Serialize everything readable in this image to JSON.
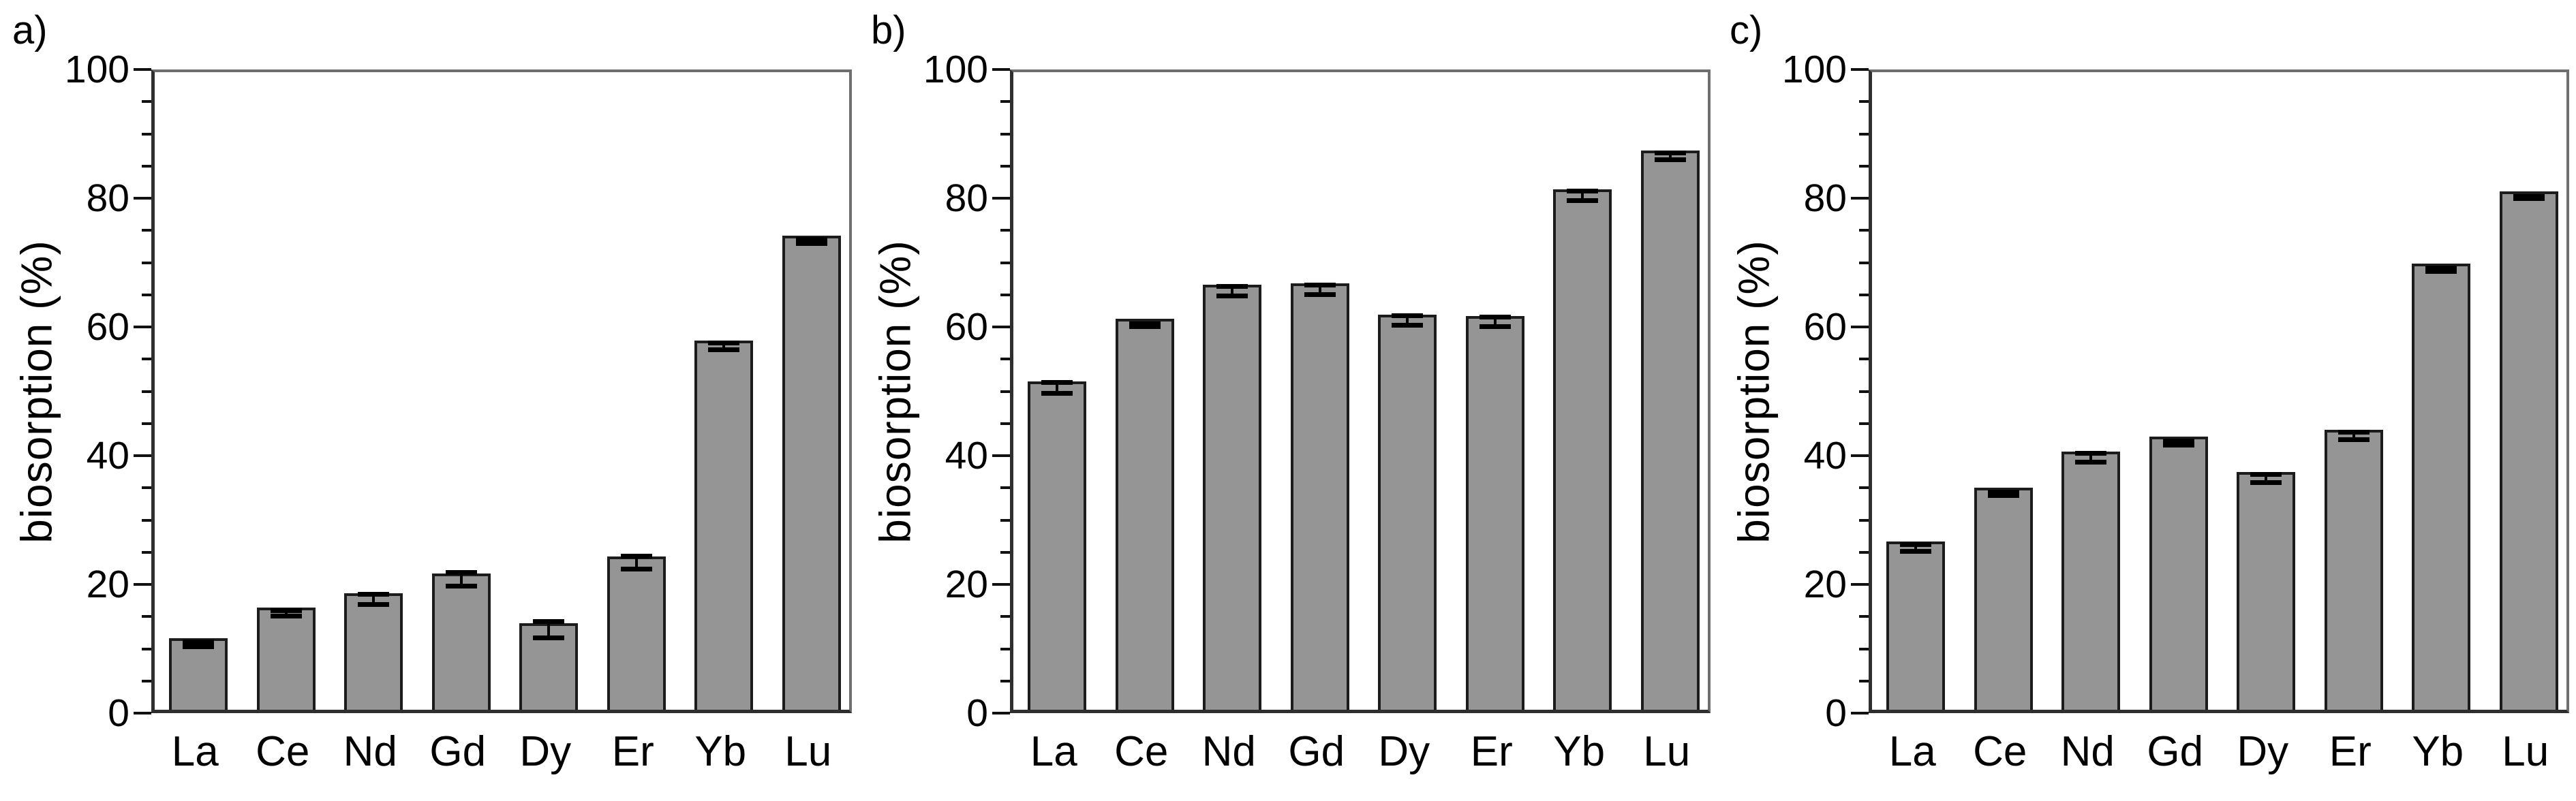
{
  "figure_title": "",
  "colors": {
    "background": "#ffffff",
    "bar_fill": "#959595",
    "bar_border": "#1c1c1c",
    "axis": "#2f2f2f",
    "box": "#6e6e6e",
    "tick": "#111111",
    "text": "#000000"
  },
  "chart_data": [
    {
      "type": "bar",
      "panel_label": "a)",
      "title": "",
      "xlabel": "",
      "ylabel": "biosorption (%)",
      "categories": [
        "La",
        "Ce",
        "Nd",
        "Gd",
        "Dy",
        "Er",
        "Yb",
        "Lu"
      ],
      "values": [
        11.1,
        15.9,
        18.1,
        21.2,
        13.4,
        23.8,
        57.4,
        73.7
      ],
      "errors": [
        0.4,
        0.5,
        0.8,
        1.1,
        1.3,
        1.1,
        0.6,
        0.4
      ],
      "ylim": [
        0,
        100
      ],
      "yticks": [
        0,
        20,
        40,
        60,
        80,
        100
      ],
      "minor_tick_step": 5,
      "grid": false,
      "legend": null
    },
    {
      "type": "bar",
      "panel_label": "b)",
      "title": "",
      "xlabel": "",
      "ylabel": "biosorption (%)",
      "categories": [
        "La",
        "Ce",
        "Nd",
        "Gd",
        "Dy",
        "Er",
        "Yb",
        "Lu"
      ],
      "values": [
        51.0,
        60.7,
        66.0,
        66.2,
        61.4,
        61.2,
        80.8,
        86.9
      ],
      "errors": [
        0.9,
        0.3,
        0.8,
        0.8,
        0.8,
        0.8,
        0.8,
        0.6
      ],
      "ylim": [
        0,
        100
      ],
      "yticks": [
        0,
        20,
        40,
        60,
        80,
        100
      ],
      "minor_tick_step": 5,
      "grid": false,
      "legend": null
    },
    {
      "type": "bar",
      "panel_label": "c)",
      "title": "",
      "xlabel": "",
      "ylabel": "biosorption (%)",
      "categories": [
        "La",
        "Ce",
        "Nd",
        "Gd",
        "Dy",
        "Er",
        "Yb",
        "Lu"
      ],
      "values": [
        26.1,
        34.5,
        40.1,
        42.4,
        36.9,
        43.5,
        69.3,
        80.5
      ],
      "errors": [
        0.6,
        0.3,
        0.7,
        0.4,
        0.7,
        0.6,
        0.3,
        0.2
      ],
      "ylim": [
        0,
        100
      ],
      "yticks": [
        0,
        20,
        40,
        60,
        80,
        100
      ],
      "minor_tick_step": 5,
      "grid": false,
      "legend": null
    }
  ]
}
